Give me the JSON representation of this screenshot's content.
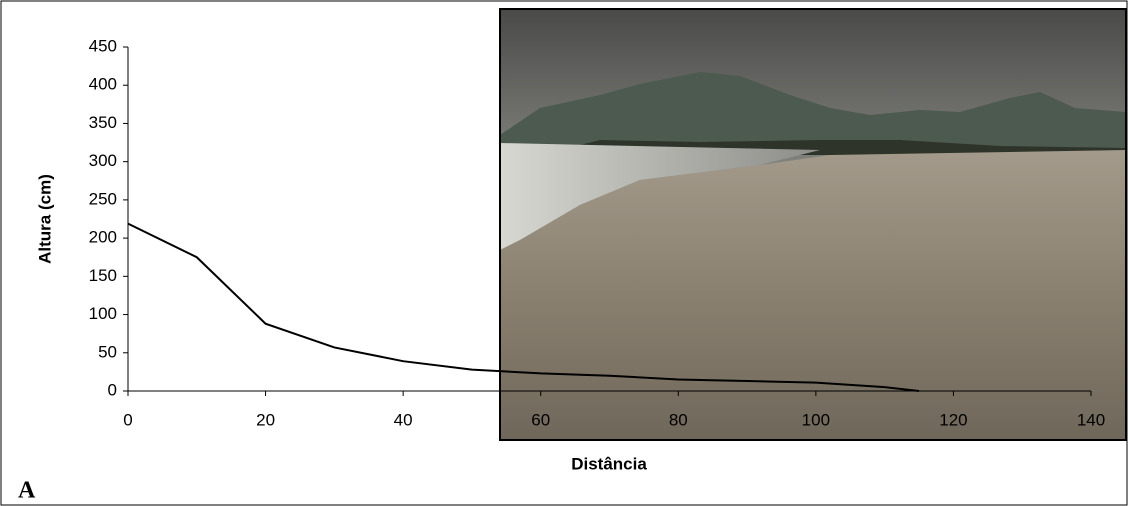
{
  "chart_data": {
    "type": "line",
    "xlabel": "Distância",
    "ylabel": "Altura (cm)",
    "panel_label": "A",
    "x": [
      0,
      10,
      20,
      30,
      40,
      50,
      60,
      70,
      80,
      90,
      100,
      110,
      115
    ],
    "series": [
      {
        "color": "#000000",
        "values": [
          219,
          175,
          88,
          57,
          39,
          28,
          23,
          20,
          15,
          13,
          11,
          5,
          0
        ]
      }
    ],
    "xlim": [
      0,
      140
    ],
    "xticks": [
      0,
      20,
      40,
      60,
      80,
      100,
      120,
      140
    ],
    "ylim": [
      0,
      450
    ],
    "yticks": [
      0,
      50,
      100,
      150,
      200,
      250,
      300,
      350,
      400,
      450
    ]
  }
}
